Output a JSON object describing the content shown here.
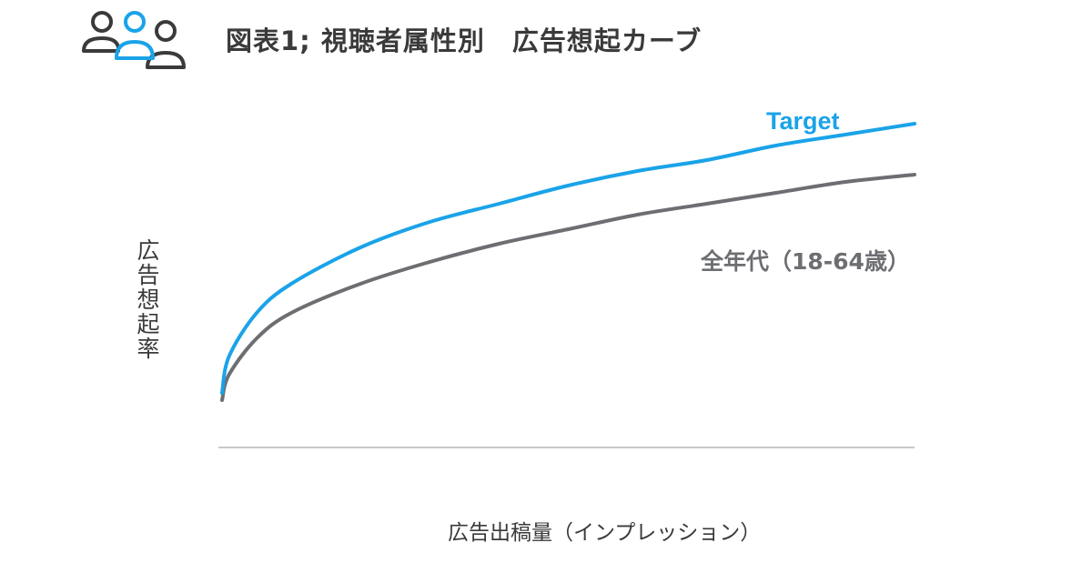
{
  "header": {
    "title": "図表1; 視聴者属性別　広告想起カーブ",
    "icon": "people-group-icon"
  },
  "colors": {
    "target": "#1aa3e8",
    "all_ages": "#6d6e72",
    "axis": "#c8c8c8",
    "icon_dark": "#3a3a3a",
    "icon_accent": "#1aa3e8"
  },
  "chart_data": {
    "type": "line",
    "xlabel": "広告出稿量（インプレッション）",
    "ylabel": "広告想起率",
    "grid": false,
    "x_ticks_shown": false,
    "y_ticks_shown": false,
    "legend": "inline labels at line ends",
    "x": [
      0,
      0.01,
      0.05,
      0.1,
      0.2,
      0.3,
      0.4,
      0.5,
      0.6,
      0.7,
      0.8,
      0.9,
      1.0
    ],
    "series": [
      {
        "name": "Target",
        "values": [
          0.15,
          0.25,
          0.37,
          0.45,
          0.55,
          0.62,
          0.67,
          0.72,
          0.76,
          0.79,
          0.83,
          0.86,
          0.89
        ]
      },
      {
        "name": "全年代（18-64歳）",
        "values": [
          0.13,
          0.2,
          0.3,
          0.37,
          0.45,
          0.51,
          0.56,
          0.6,
          0.64,
          0.67,
          0.7,
          0.73,
          0.75
        ]
      }
    ]
  }
}
